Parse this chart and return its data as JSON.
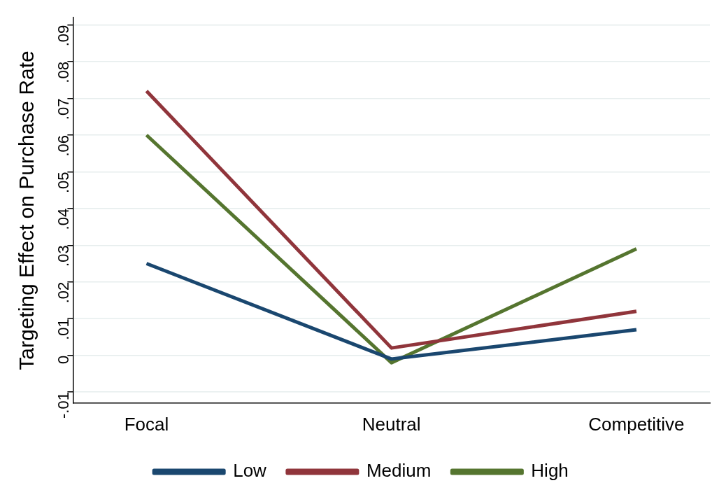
{
  "chart_data": {
    "type": "line",
    "ylabel": "Targeting Effect on Purchase Rate",
    "categories": [
      "Focal",
      "Neutral",
      "Competitive"
    ],
    "series": [
      {
        "name": "Low",
        "color": "#1a476f",
        "values": [
          0.025,
          -0.001,
          0.007
        ]
      },
      {
        "name": "Medium",
        "color": "#90353b",
        "values": [
          0.072,
          0.002,
          0.012
        ]
      },
      {
        "name": "High",
        "color": "#55752f",
        "values": [
          0.06,
          -0.002,
          0.029
        ]
      }
    ],
    "ylim": [
      -0.013,
      0.092
    ],
    "yticks": [
      {
        "value": -0.01,
        "label": "-.01"
      },
      0,
      {
        "value": 0.01,
        "label": ".01"
      },
      {
        "value": 0.02,
        "label": ".02"
      },
      {
        "value": 0.03,
        "label": ".03"
      },
      {
        "value": 0.04,
        "label": ".04"
      },
      {
        "value": 0.05,
        "label": ".05"
      },
      {
        "value": 0.06,
        "label": ".06"
      },
      {
        "value": 0.07,
        "label": ".07"
      },
      {
        "value": 0.08,
        "label": ".08"
      },
      {
        "value": 0.09,
        "label": ".09"
      }
    ],
    "grid": "y",
    "legend": "bottom",
    "marker": "none",
    "line_style": "solid"
  }
}
